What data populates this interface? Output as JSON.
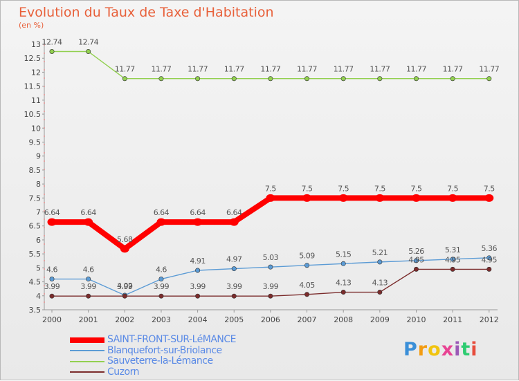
{
  "chart_data": {
    "type": "line",
    "title": "Evolution du Taux de Taxe d'Habitation",
    "ylabel": "(en %)",
    "xlabel": "",
    "categories": [
      "2000",
      "2001",
      "2002",
      "2003",
      "2004",
      "2005",
      "2006",
      "2007",
      "2008",
      "2009",
      "2010",
      "2011",
      "2012"
    ],
    "ylim": [
      3.5,
      13
    ],
    "yticks": [
      "3.5",
      "4",
      "4.5",
      "5",
      "5.5",
      "6",
      "6.5",
      "7",
      "7.5",
      "8",
      "8.5",
      "9",
      "9.5",
      "10",
      "10.5",
      "11",
      "11.5",
      "12",
      "12.5",
      "13"
    ],
    "grid": false,
    "legend_position": "bottom-left",
    "series": [
      {
        "name": "Sauveterre-la-Lémance",
        "color": "#92d050",
        "values": [
          12.74,
          12.74,
          11.77,
          11.77,
          11.77,
          11.77,
          11.77,
          11.77,
          11.77,
          11.77,
          11.77,
          11.77,
          11.77
        ],
        "labels": [
          "12.74",
          "12.74",
          "11.77",
          "11.77",
          "11.77",
          "11.77",
          "11.77",
          "11.77",
          "11.77",
          "11.77",
          "11.77",
          "11.77",
          "11.77"
        ]
      },
      {
        "name": "SAINT-FRONT-SUR-LéMANCE",
        "color": "#ff0000",
        "values": [
          6.64,
          6.64,
          5.68,
          6.64,
          6.64,
          6.64,
          7.5,
          7.5,
          7.5,
          7.5,
          7.5,
          7.5,
          7.5
        ],
        "labels": [
          "6.64",
          "6.64",
          "5.68",
          "6.64",
          "6.64",
          "6.64",
          "7.5",
          "7.5",
          "7.5",
          "7.5",
          "7.5",
          "7.5",
          "7.5"
        ]
      },
      {
        "name": "Blanquefort-sur-Briolance",
        "color": "#5b9bd5",
        "values": [
          4.6,
          4.6,
          4.02,
          4.6,
          4.91,
          4.97,
          5.03,
          5.09,
          5.15,
          5.21,
          5.26,
          5.31,
          5.36
        ],
        "labels": [
          "4.6",
          "4.6",
          "4.02",
          "4.6",
          "4.91",
          "4.97",
          "5.03",
          "5.09",
          "5.15",
          "5.21",
          "5.26",
          "5.31",
          "5.36"
        ]
      },
      {
        "name": "Cuzorn",
        "color": "#7b2c2c",
        "values": [
          3.99,
          3.99,
          3.99,
          3.99,
          3.99,
          3.99,
          3.99,
          4.05,
          4.13,
          4.13,
          4.95,
          4.95,
          4.95
        ],
        "labels": [
          "3.99",
          "3.99",
          "3.99",
          "3.99",
          "3.99",
          "3.99",
          "3.99",
          "4.05",
          "4.13",
          "4.13",
          "4.95",
          "4.95",
          "4.95"
        ]
      }
    ],
    "legend": [
      {
        "name": "SAINT-FRONT-SUR-LéMANCE",
        "color": "#ff0000",
        "weight": "thick"
      },
      {
        "name": "Blanquefort-sur-Briolance",
        "color": "#5b9bd5",
        "weight": "thin"
      },
      {
        "name": "Sauveterre-la-Lémance",
        "color": "#92d050",
        "weight": "thin"
      },
      {
        "name": "Cuzorn",
        "color": "#7b2c2c",
        "weight": "thin"
      }
    ]
  },
  "brand": {
    "letters": [
      "P",
      "r",
      "o",
      "x",
      "i",
      "t",
      "i"
    ],
    "colors": [
      "#3a8fd8",
      "#f39c12",
      "#f1c40f",
      "#e84393",
      "#9b59b6",
      "#2ecc71",
      "#e74c3c"
    ]
  }
}
